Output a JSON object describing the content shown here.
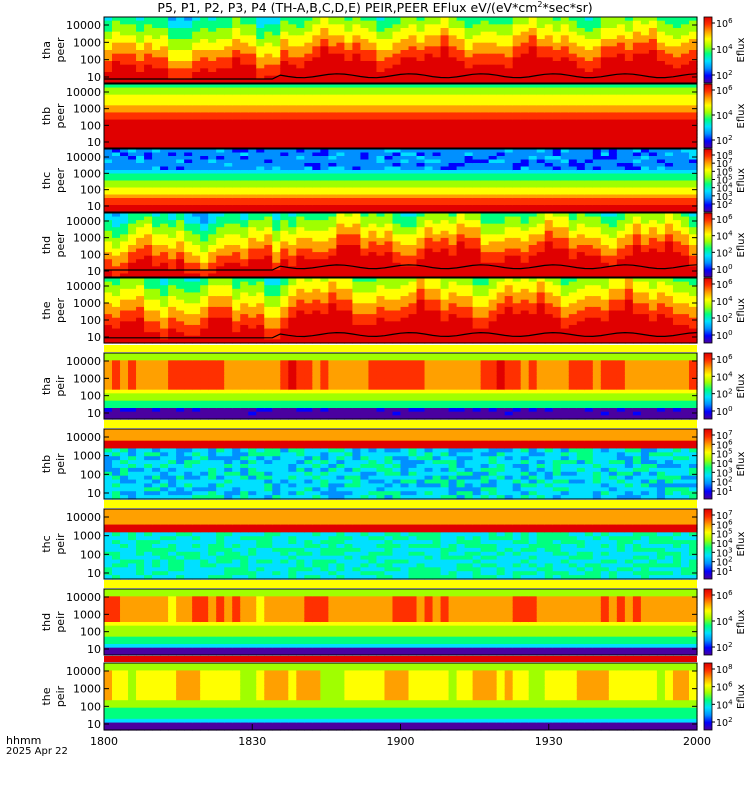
{
  "title": {
    "main": "P5, P1, P2, P3, P4 (TH-A,B,C,D,E) PEIR,PEER EFlux eV/(eV*cm",
    "sup": "2",
    "tail": "*sec*sr)"
  },
  "chart_data": {
    "type": "heatmap",
    "x_axis": {
      "label_line1": "hhmm",
      "label_line2": "2025 Apr 22",
      "range": [
        1800,
        2000
      ],
      "ticks": [
        "1800",
        "1830",
        "1900",
        "1930",
        "2000"
      ]
    },
    "colorbar_label": "Eflux",
    "panels": [
      {
        "name": "tha peer",
        "probe": "tha",
        "species": "peer",
        "y_ticks": [
          "10",
          "100",
          "1000",
          "10000"
        ],
        "y_scale": "log",
        "cbar_ticks": [
          "10^2",
          "10^4",
          "10^6"
        ],
        "scp_line": true
      },
      {
        "name": "thb peer",
        "probe": "thb",
        "species": "peer",
        "y_ticks": [
          "10",
          "100",
          "1000",
          "10000"
        ],
        "y_scale": "log",
        "cbar_ticks": [
          "10^2",
          "10^4",
          "10^6"
        ],
        "scp_line": false
      },
      {
        "name": "thc peer",
        "probe": "thc",
        "species": "peer",
        "y_ticks": [
          "10",
          "100",
          "1000",
          "10000"
        ],
        "y_scale": "log",
        "cbar_ticks": [
          "10^2",
          "10^3",
          "10^4",
          "10^5",
          "10^6",
          "10^7",
          "10^8"
        ],
        "scp_line": false
      },
      {
        "name": "thd peer",
        "probe": "thd",
        "species": "peer",
        "y_ticks": [
          "10",
          "100",
          "1000",
          "10000"
        ],
        "y_scale": "log",
        "cbar_ticks": [
          "10^0",
          "10^2",
          "10^4",
          "10^6"
        ],
        "scp_line": true
      },
      {
        "name": "the peer",
        "probe": "the",
        "species": "peer",
        "y_ticks": [
          "10",
          "100",
          "1000",
          "10000"
        ],
        "y_scale": "log",
        "cbar_ticks": [
          "10^0",
          "10^2",
          "10^4",
          "10^6"
        ],
        "scp_line": true
      },
      {
        "name": "tha peir",
        "probe": "tha",
        "species": "peir",
        "y_ticks": [
          "10",
          "100",
          "1000",
          "10000"
        ],
        "y_scale": "log",
        "cbar_ticks": [
          "10^0",
          "10^2",
          "10^4",
          "10^6"
        ],
        "scp_line": false
      },
      {
        "name": "thb peir",
        "probe": "thb",
        "species": "peir",
        "y_ticks": [
          "10",
          "100",
          "1000",
          "10000"
        ],
        "y_scale": "log",
        "cbar_ticks": [
          "10^1",
          "10^2",
          "10^3",
          "10^4",
          "10^5",
          "10^6",
          "10^7"
        ],
        "scp_line": false
      },
      {
        "name": "thc peir",
        "probe": "thc",
        "species": "peir",
        "y_ticks": [
          "10",
          "100",
          "1000",
          "10000"
        ],
        "y_scale": "log",
        "cbar_ticks": [
          "10^1",
          "10^2",
          "10^3",
          "10^4",
          "10^5",
          "10^6",
          "10^7"
        ],
        "scp_line": false
      },
      {
        "name": "thd peir",
        "probe": "thd",
        "species": "peir",
        "y_ticks": [
          "10",
          "100",
          "1000",
          "10000"
        ],
        "y_scale": "log",
        "cbar_ticks": [
          "10^2",
          "10^4",
          "10^6"
        ],
        "scp_line": false
      },
      {
        "name": "the peir",
        "probe": "the",
        "species": "peir",
        "y_ticks": [
          "10",
          "100",
          "1000",
          "10000"
        ],
        "y_scale": "log",
        "cbar_ticks": [
          "10^2",
          "10^4",
          "10^6",
          "10^8"
        ],
        "scp_line": false
      }
    ],
    "colors": {
      "colormap": [
        "#4a00a0",
        "#0000ff",
        "#0090ff",
        "#00e0ff",
        "#00ff80",
        "#a0ff00",
        "#ffff00",
        "#ffa000",
        "#ff3000",
        "#e00000"
      ],
      "scp_line": "#000000"
    }
  }
}
